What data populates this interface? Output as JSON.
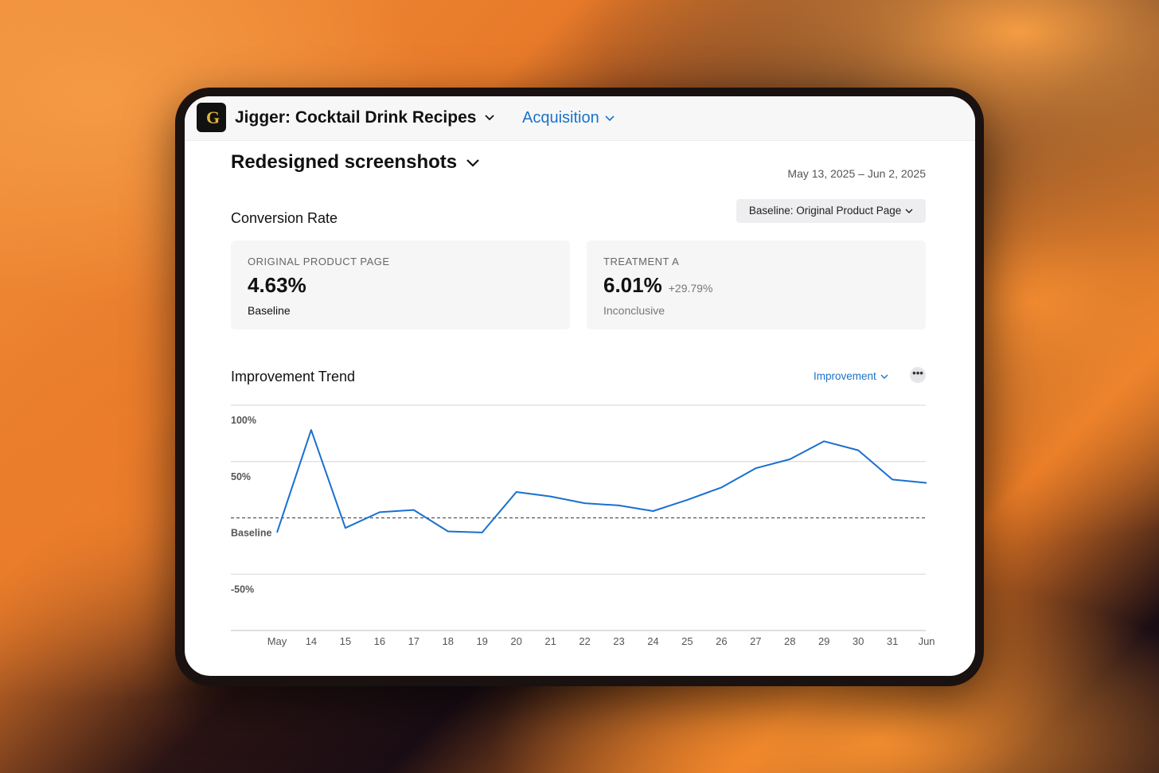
{
  "app": {
    "name": "Jigger: Cocktail Drink Recipes",
    "icon_glyph": "G",
    "section": "Acquisition"
  },
  "experiment": {
    "title": "Redesigned screenshots",
    "date_range": "May 13, 2025 – Jun 2, 2025"
  },
  "conversion": {
    "title": "Conversion Rate",
    "baseline_selector": "Baseline: Original Product Page",
    "cards": [
      {
        "label": "ORIGINAL PRODUCT PAGE",
        "value": "4.63%",
        "delta": "",
        "status": "Baseline"
      },
      {
        "label": "TREATMENT A",
        "value": "6.01%",
        "delta": "+29.79%",
        "status": "Inconclusive"
      }
    ]
  },
  "trend": {
    "title": "Improvement Trend",
    "metric_selector": "Improvement",
    "more_label": "•••"
  },
  "colors": {
    "accent": "#1a73c9",
    "line": "#1a6fd0"
  },
  "chart_data": {
    "type": "line",
    "title": "Improvement Trend",
    "xlabel": "",
    "ylabel": "",
    "x": [
      "May",
      "14",
      "15",
      "16",
      "17",
      "18",
      "19",
      "20",
      "21",
      "22",
      "23",
      "24",
      "25",
      "26",
      "27",
      "28",
      "29",
      "30",
      "31",
      "Jun"
    ],
    "ytick_labels": [
      "100%",
      "50%",
      "Baseline",
      "-50%"
    ],
    "yticks": [
      100,
      50,
      0,
      -50
    ],
    "ylim": [
      -100,
      100
    ],
    "grid": true,
    "baseline_value": 0,
    "series": [
      {
        "values": [
          -13,
          78,
          -9,
          5,
          7,
          -12,
          -13,
          23,
          19,
          13,
          11,
          6,
          16,
          27,
          44,
          52,
          68,
          60,
          34,
          31
        ]
      }
    ]
  }
}
